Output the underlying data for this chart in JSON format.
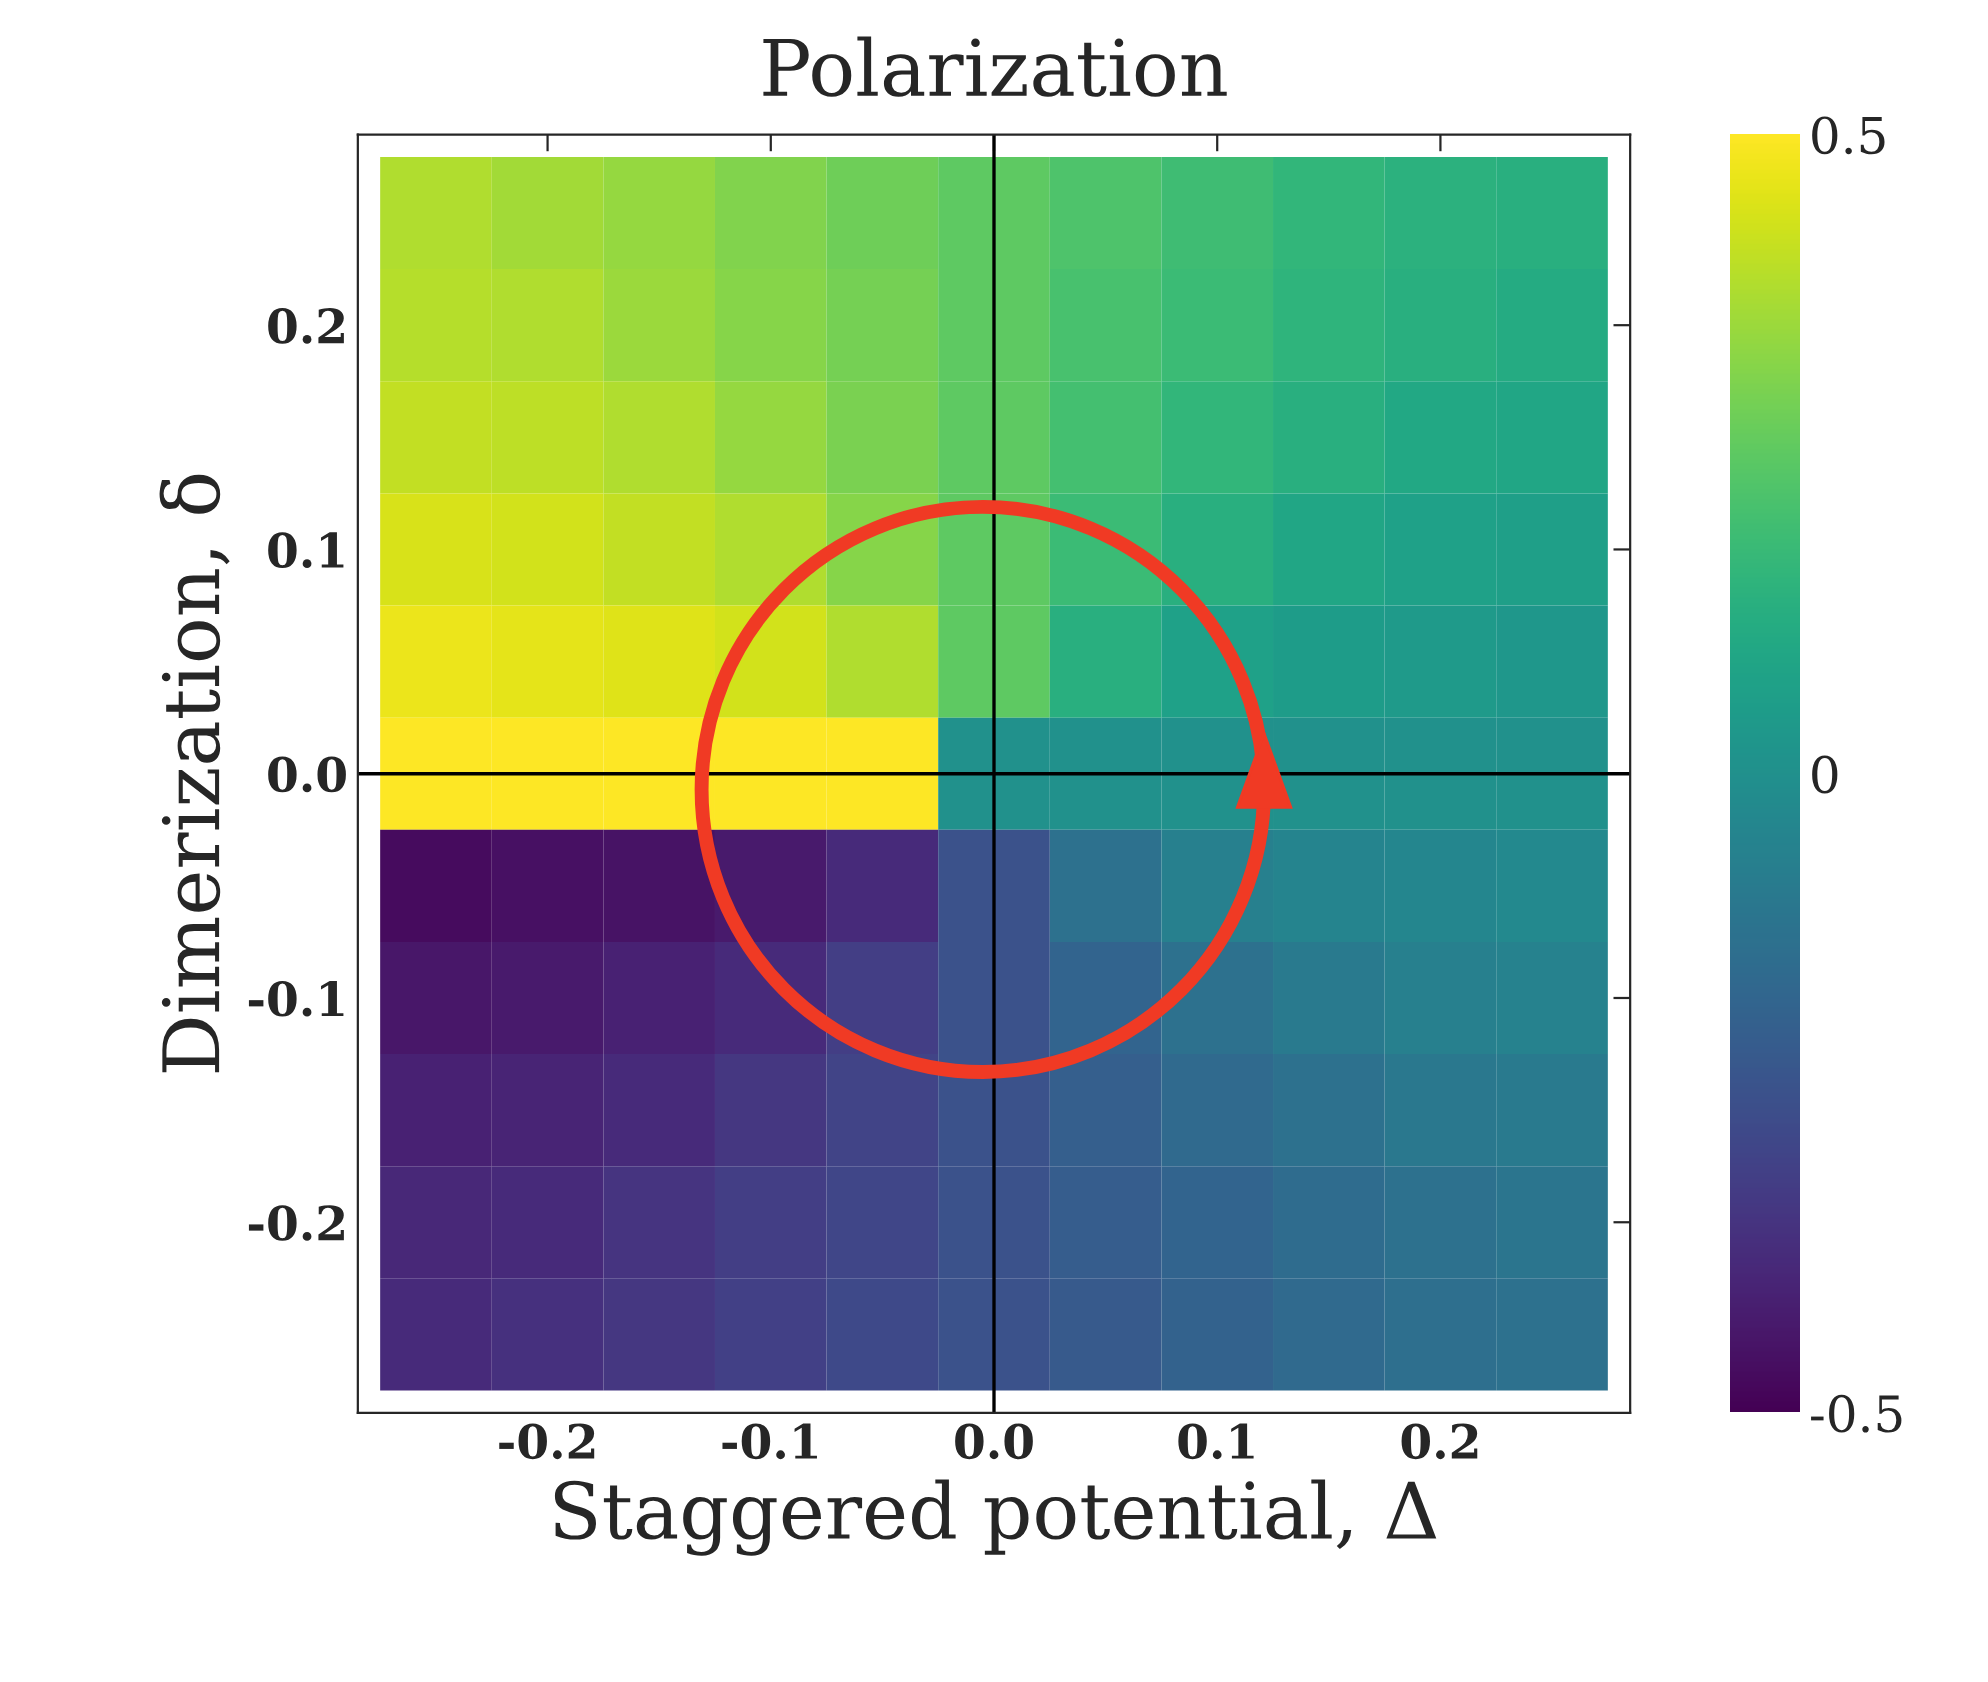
{
  "chart_data": {
    "type": "heatmap",
    "title": "Polarization",
    "xlabel": "Staggered potential, Δ",
    "ylabel": "Dimerization, δ",
    "categories": [
      null,
      "-0.2",
      null,
      "-0.1",
      null,
      "0.0",
      null,
      "0.1",
      null,
      "0.2",
      null
    ],
    "y_categories": [
      null,
      "0.2",
      null,
      "0.1",
      null,
      "0.0",
      null,
      "-0.1",
      null,
      "-0.2",
      null
    ],
    "cells": [
      [
        0.38,
        0.36,
        0.34,
        0.31,
        0.28,
        0.25,
        0.22,
        0.19,
        0.16,
        0.14,
        0.13
      ],
      [
        0.39,
        0.38,
        0.35,
        0.32,
        0.29,
        0.25,
        0.21,
        0.18,
        0.15,
        0.13,
        0.11
      ],
      [
        0.41,
        0.4,
        0.38,
        0.34,
        0.3,
        0.25,
        0.2,
        0.16,
        0.13,
        0.1,
        0.09
      ],
      [
        0.44,
        0.43,
        0.41,
        0.38,
        0.32,
        0.25,
        0.18,
        0.13,
        0.09,
        0.07,
        0.06
      ],
      [
        0.47,
        0.46,
        0.45,
        0.43,
        0.38,
        0.25,
        0.13,
        0.07,
        0.05,
        0.04,
        0.03
      ],
      [
        0.5,
        0.5,
        0.5,
        0.5,
        0.5,
        0,
        0,
        0,
        0,
        0,
        0
      ],
      [
        -0.47,
        -0.46,
        -0.45,
        -0.43,
        -0.38,
        -0.25,
        -0.13,
        -0.07,
        -0.05,
        -0.04,
        -0.03
      ],
      [
        -0.44,
        -0.43,
        -0.41,
        -0.38,
        -0.32,
        -0.25,
        -0.18,
        -0.13,
        -0.09,
        -0.07,
        -0.06
      ],
      [
        -0.41,
        -0.4,
        -0.38,
        -0.34,
        -0.3,
        -0.25,
        -0.2,
        -0.16,
        -0.13,
        -0.1,
        -0.09
      ],
      [
        -0.39,
        -0.38,
        -0.35,
        -0.32,
        -0.29,
        -0.25,
        -0.21,
        -0.18,
        -0.15,
        -0.13,
        -0.11
      ],
      [
        -0.38,
        -0.36,
        -0.34,
        -0.31,
        -0.28,
        -0.25,
        -0.22,
        -0.19,
        -0.16,
        -0.14,
        -0.13
      ]
    ],
    "clim": [
      -0.5,
      0.5
    ],
    "cticks": [
      {
        "value": -0.5,
        "label": "-0.5"
      },
      0,
      0.5
    ]
  }
}
